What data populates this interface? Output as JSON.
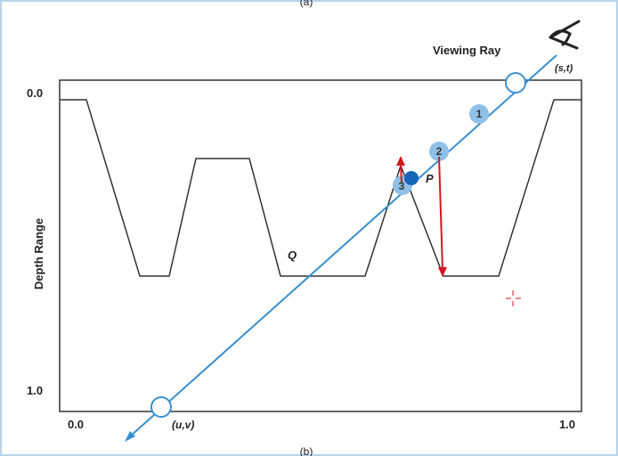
{
  "caption_top": "(a)",
  "caption_bottom": "(b)",
  "viewing_ray": "Viewing Ray",
  "eye_coord": "(s,t)",
  "texture_coord": "(u,v)",
  "y_axis": {
    "title": "Depth Range",
    "top": "0.0",
    "bottom": "1.0"
  },
  "x_axis": {
    "left": "0.0",
    "right": "1.0"
  },
  "points": {
    "q": "Q",
    "p": "P",
    "step1": "1",
    "step2": "2",
    "step3": "3"
  }
}
